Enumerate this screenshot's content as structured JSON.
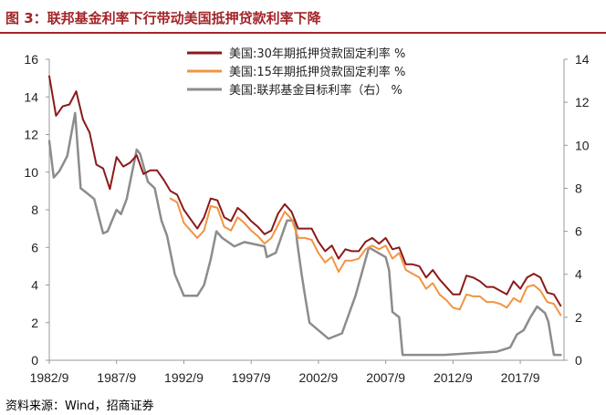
{
  "title": "图 3：联邦基金利率下行带动美国抵押贷款利率下降",
  "source": "资料来源：Wind，招商证券",
  "chart_data": {
    "type": "line",
    "title": "图 3：联邦基金利率下行带动美国抵押贷款利率下降",
    "x_tick_labels": [
      "1982/9",
      "1987/9",
      "1992/9",
      "1997/9",
      "2002/9",
      "2007/9",
      "2012/9",
      "2017/9"
    ],
    "y_left": {
      "ticks": [
        0,
        2,
        4,
        6,
        8,
        10,
        12,
        14,
        16
      ],
      "ylim": [
        0,
        16
      ]
    },
    "y_right": {
      "ticks": [
        0,
        2,
        4,
        6,
        8,
        10,
        12,
        14
      ],
      "ylim": [
        0,
        14
      ]
    },
    "grid": false,
    "legend_position": "top-right",
    "series": [
      {
        "name": "美国:30年期抵押贷款固定利率 %",
        "color": "#8b1a1a",
        "axis": "left",
        "x": [
          "1982-09",
          "1983-03",
          "1983-09",
          "1984-03",
          "1984-09",
          "1985-03",
          "1985-09",
          "1986-03",
          "1986-09",
          "1987-03",
          "1987-09",
          "1988-03",
          "1988-09",
          "1989-03",
          "1989-09",
          "1990-03",
          "1990-09",
          "1991-03",
          "1991-09",
          "1992-03",
          "1992-09",
          "1993-03",
          "1993-09",
          "1994-03",
          "1994-09",
          "1995-03",
          "1995-09",
          "1996-03",
          "1996-09",
          "1997-03",
          "1997-09",
          "1998-03",
          "1998-09",
          "1999-03",
          "1999-09",
          "2000-03",
          "2000-09",
          "2001-03",
          "2001-09",
          "2002-03",
          "2002-09",
          "2003-03",
          "2003-09",
          "2004-03",
          "2004-09",
          "2005-03",
          "2005-09",
          "2006-03",
          "2006-09",
          "2007-03",
          "2007-09",
          "2008-03",
          "2008-09",
          "2009-03",
          "2009-09",
          "2010-03",
          "2010-09",
          "2011-03",
          "2011-09",
          "2012-03",
          "2012-09",
          "2013-03",
          "2013-09",
          "2014-03",
          "2014-09",
          "2015-03",
          "2015-09",
          "2016-03",
          "2016-09",
          "2017-03",
          "2017-09",
          "2018-03",
          "2018-09",
          "2019-03",
          "2019-09",
          "2020-03",
          "2020-09"
        ],
        "y": [
          15.1,
          13.0,
          13.5,
          13.6,
          14.3,
          12.8,
          12.1,
          10.4,
          10.2,
          9.1,
          10.8,
          10.3,
          10.5,
          10.9,
          9.9,
          10.1,
          10.1,
          9.6,
          9.0,
          8.8,
          8.0,
          7.5,
          7.0,
          7.6,
          8.6,
          8.5,
          7.6,
          7.4,
          8.1,
          7.8,
          7.4,
          7.1,
          6.7,
          6.9,
          7.8,
          8.3,
          7.9,
          7.0,
          7.0,
          7.0,
          6.3,
          5.8,
          6.1,
          5.4,
          5.9,
          5.8,
          5.8,
          6.3,
          6.5,
          6.2,
          6.5,
          5.9,
          6.0,
          5.1,
          5.1,
          5.0,
          4.4,
          4.8,
          4.3,
          3.9,
          3.5,
          3.5,
          4.5,
          4.4,
          4.2,
          3.9,
          3.9,
          3.7,
          3.5,
          4.2,
          3.8,
          4.4,
          4.6,
          4.4,
          3.6,
          3.5,
          2.9
        ]
      },
      {
        "name": "美国:15年期抵押贷款固定利率 %",
        "color": "#f29440",
        "axis": "left",
        "x": [
          "1991-09",
          "1992-03",
          "1992-09",
          "1993-03",
          "1993-09",
          "1994-03",
          "1994-09",
          "1995-03",
          "1995-09",
          "1996-03",
          "1996-09",
          "1997-03",
          "1997-09",
          "1998-03",
          "1998-09",
          "1999-03",
          "1999-09",
          "2000-03",
          "2000-09",
          "2001-03",
          "2001-09",
          "2002-03",
          "2002-09",
          "2003-03",
          "2003-09",
          "2004-03",
          "2004-09",
          "2005-03",
          "2005-09",
          "2006-03",
          "2006-09",
          "2007-03",
          "2007-09",
          "2008-03",
          "2008-09",
          "2009-03",
          "2009-09",
          "2010-03",
          "2010-09",
          "2011-03",
          "2011-09",
          "2012-03",
          "2012-09",
          "2013-03",
          "2013-09",
          "2014-03",
          "2014-09",
          "2015-03",
          "2015-09",
          "2016-03",
          "2016-09",
          "2017-03",
          "2017-09",
          "2018-03",
          "2018-09",
          "2019-03",
          "2019-09",
          "2020-03",
          "2020-09"
        ],
        "y": [
          8.6,
          8.4,
          7.3,
          6.9,
          6.5,
          6.9,
          8.2,
          8.1,
          7.1,
          6.9,
          7.6,
          7.3,
          6.9,
          6.6,
          6.2,
          6.5,
          7.2,
          7.9,
          7.5,
          6.5,
          6.5,
          6.4,
          5.7,
          5.2,
          5.5,
          4.7,
          5.3,
          5.3,
          5.4,
          5.9,
          6.1,
          5.9,
          6.1,
          5.4,
          5.7,
          4.8,
          4.6,
          4.4,
          3.8,
          4.1,
          3.5,
          3.2,
          2.8,
          2.7,
          3.5,
          3.4,
          3.4,
          3.1,
          3.1,
          3.0,
          2.8,
          3.3,
          3.1,
          3.9,
          4.0,
          3.7,
          3.1,
          3.0,
          2.4
        ]
      },
      {
        "name": "美国:联邦基金目标利率（右） %",
        "color": "#8c8c8c",
        "axis": "right",
        "x": [
          "1982-09",
          "1983-01",
          "1983-06",
          "1984-01",
          "1984-08",
          "1985-01",
          "1985-06",
          "1986-01",
          "1986-09",
          "1987-01",
          "1987-09",
          "1988-01",
          "1988-06",
          "1989-03",
          "1989-06",
          "1990-01",
          "1990-07",
          "1991-01",
          "1991-06",
          "1992-01",
          "1992-09",
          "1993-09",
          "1994-03",
          "1994-09",
          "1995-02",
          "1995-07",
          "1996-06",
          "1997-03",
          "1998-09",
          "1998-11",
          "1999-07",
          "2000-05",
          "2000-12",
          "2001-02",
          "2001-06",
          "2001-09",
          "2002-01",
          "2003-06",
          "2004-06",
          "2005-06",
          "2006-06",
          "2007-09",
          "2007-12",
          "2008-03",
          "2008-09",
          "2008-12",
          "2012-01",
          "2015-12",
          "2016-12",
          "2017-06",
          "2017-12",
          "2018-06",
          "2018-12",
          "2019-07",
          "2019-10",
          "2020-03",
          "2020-09"
        ],
        "y": [
          10.2,
          8.5,
          8.8,
          9.5,
          11.5,
          8.0,
          7.8,
          7.5,
          5.9,
          6.0,
          7.0,
          6.8,
          7.5,
          9.8,
          9.6,
          8.3,
          8.0,
          6.5,
          5.8,
          4.0,
          3.0,
          3.0,
          3.5,
          4.7,
          6.0,
          5.7,
          5.3,
          5.5,
          5.3,
          4.8,
          5.0,
          6.5,
          6.5,
          5.5,
          4.0,
          3.0,
          1.75,
          1.0,
          1.25,
          3.0,
          5.25,
          4.8,
          4.2,
          2.25,
          2.0,
          0.25,
          0.25,
          0.4,
          0.6,
          1.2,
          1.4,
          2.0,
          2.5,
          2.2,
          1.8,
          0.25,
          0.25
        ]
      }
    ]
  }
}
